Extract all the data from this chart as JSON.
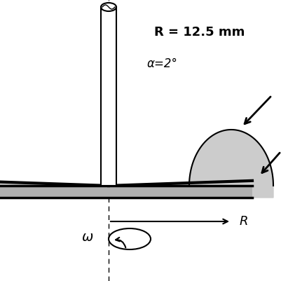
{
  "bg_color": "#ffffff",
  "plate_color": "#b0b0b0",
  "cone_fill_color": "#cccccc",
  "shaft_color": "#ffffff",
  "text_R": "R = 12.5 mm",
  "text_alpha": "α=2°",
  "text_omega": "ω",
  "text_R_label": "R",
  "title_fontsize": 13,
  "label_fontsize": 12,
  "alpha_fontsize": 12,
  "figsize": [
    4.01,
    4.01
  ],
  "dpi": 100
}
